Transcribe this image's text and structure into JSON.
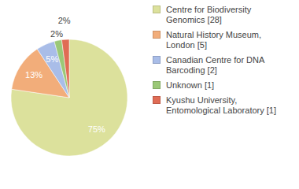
{
  "chart_data": {
    "type": "pie",
    "categories": [
      "Centre for Biodiversity Genomics [28]",
      "Natural History Museum, London [5]",
      "Canadian Centre for DNA Barcoding [2]",
      "Unknown [1]",
      "Kyushu University, Entomological Laboratory [1]"
    ],
    "values": [
      75,
      13,
      5,
      2,
      2
    ],
    "value_labels": [
      "75%",
      "13%",
      "5%",
      "2%",
      "2%"
    ],
    "colors": [
      "#dce19c",
      "#f2ad7a",
      "#a9bde8",
      "#9bc877",
      "#e06c55"
    ],
    "data_labels": true,
    "legend": "right"
  }
}
